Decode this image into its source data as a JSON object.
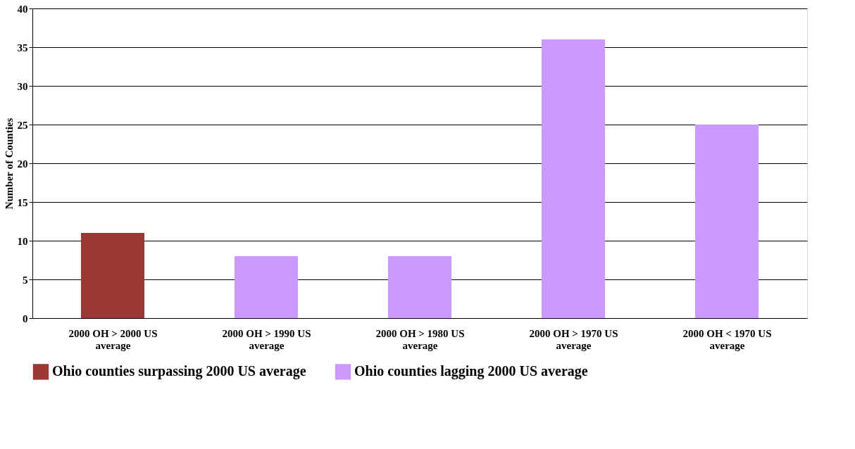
{
  "chart_data": {
    "type": "bar",
    "ylabel": "Number of Counties",
    "categories": [
      "2000 OH > 2000 US average",
      "2000 OH > 1990 US average",
      "2000 OH > 1980 US average",
      "2000 OH > 1970 US average",
      "2000 OH < 1970 US average"
    ],
    "series": [
      {
        "name": "Ohio counties surpassing 2000 US average",
        "color": "#993835",
        "values": [
          11,
          null,
          null,
          null,
          null
        ]
      },
      {
        "name": "Ohio counties lagging 2000 US average",
        "color": "#cc99ff",
        "values": [
          null,
          8,
          8,
          36,
          25
        ]
      }
    ],
    "ylim": [
      0,
      40
    ],
    "yticks": [
      0,
      5,
      10,
      15,
      20,
      25,
      30,
      35,
      40
    ],
    "grid": "y",
    "legend": "bottom"
  }
}
